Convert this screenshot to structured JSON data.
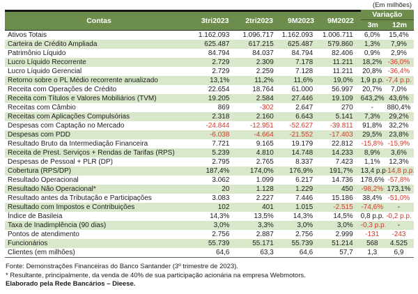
{
  "note_top": "(Em milhões)",
  "colors": {
    "header_green": "#6d8d4d",
    "stripe_green": "#d9e7ca",
    "negative_red": "#d5392a"
  },
  "table": {
    "header": {
      "contas": "Contas",
      "periods": [
        "3tri2023",
        "2tri2023",
        "9M2023",
        "9M2022"
      ],
      "variacao": "Variação",
      "sub": [
        "3m",
        "12m"
      ]
    },
    "rows": [
      {
        "label": "Ativos Totais",
        "values": [
          "1.162.093",
          "1.096.717",
          "1.162.093",
          "1.006.711",
          "6,0%",
          "15,4%"
        ],
        "red": []
      },
      {
        "label": "Carteira de Crédito Ampliada",
        "values": [
          "625.487",
          "617.215",
          "625.487",
          "579.860",
          "1,3%",
          "7,9%"
        ],
        "red": []
      },
      {
        "label": "Patrimônio Líquido",
        "values": [
          "84.794",
          "84.037",
          "84.794",
          "82.406",
          "0,9%",
          "2,9%"
        ],
        "red": []
      },
      {
        "label": "Lucro Líquido Recorrente",
        "values": [
          "2.729",
          "2.309",
          "7.178",
          "11.211",
          "18,2%",
          "-36,0%"
        ],
        "red": [
          5
        ]
      },
      {
        "label": "Lucro Líquido Gerencial",
        "values": [
          "2.729",
          "2.259",
          "7.128",
          "11.211",
          "20,8%",
          "-36,4%"
        ],
        "red": [
          5
        ]
      },
      {
        "label": "Retorno sobre o PL Médio recorrente anualizado",
        "values": [
          "13,1%",
          "11,2%",
          "11,6%",
          "19,0%",
          "1,9 p.p.",
          "-7,4 p.p."
        ],
        "red": [
          5
        ]
      },
      {
        "label": "Receita com Operações de Crédito",
        "values": [
          "22.654",
          "18.764",
          "61.000",
          "56.997",
          "20,7%",
          "7,0%"
        ],
        "red": []
      },
      {
        "label": "Receita com Títulos e Valores Mobiliários (TVM)",
        "values": [
          "19.205",
          "2.584",
          "27.446",
          "19.109",
          "643,2%",
          "43,6%"
        ],
        "red": []
      },
      {
        "label": "Receitas com Câmbio",
        "values": [
          "869",
          "-302",
          "2.647",
          "270",
          "-",
          "880,4%"
        ],
        "red": [
          1
        ]
      },
      {
        "label": "Receitas com Aplicações Compulsórias",
        "values": [
          "2.318",
          "2.160",
          "6.643",
          "5.141",
          "7,3%",
          "29,2%"
        ],
        "red": []
      },
      {
        "label": "Despesas com Captação no Mercado",
        "values": [
          "-24.844",
          "-12.951",
          "-52.627",
          "-39.811",
          "91,8%",
          "32,2%"
        ],
        "red": [
          0,
          1,
          2,
          3
        ]
      },
      {
        "label": "Despesas com PDD",
        "values": [
          "-6.038",
          "-4.664",
          "-21.552",
          "-17.403",
          "29,5%",
          "23,8%"
        ],
        "red": [
          0,
          1,
          2,
          3
        ]
      },
      {
        "label": "Resultado Bruto da Intermediação Financeira",
        "values": [
          "7.721",
          "9.165",
          "19.179",
          "22.812",
          "-15,8%",
          "-15,9%"
        ],
        "red": [
          4,
          5
        ]
      },
      {
        "label": "Receita de Prest. Serviços + Rendas de Tarifas (RPS)",
        "values": [
          "5.239",
          "4.810",
          "14.748",
          "14.233",
          "8,9%",
          "3,6%"
        ],
        "red": []
      },
      {
        "label": "Despesas de Pessoal + PLR (DP)",
        "values": [
          "2.795",
          "2.765",
          "8.337",
          "7.423",
          "1,1%",
          "12,3%"
        ],
        "red": []
      },
      {
        "label": "Cobertura (RPS/DP)",
        "values": [
          "187,4%",
          "174,0%",
          "176,9%",
          "191,7%",
          "13,4 p.p.",
          "-14,8 p.p."
        ],
        "red": [
          5
        ]
      },
      {
        "label": "Resultado Operacional",
        "values": [
          "3.062",
          "1.099",
          "6.217",
          "14.736",
          "178,6%",
          "-57,8%"
        ],
        "red": [
          5
        ]
      },
      {
        "label": "Resultado Não Operacional*",
        "values": [
          "20",
          "1.128",
          "1.229",
          "450",
          "-98,2%",
          "173,1%"
        ],
        "red": [
          4
        ]
      },
      {
        "label": "Resultado antes da Tributação e Participações",
        "values": [
          "3.083",
          "2.227",
          "7.446",
          "15.186",
          "38,4%",
          "-51,0%"
        ],
        "red": [
          5
        ]
      },
      {
        "label": "Resultado com Impostos e Contribuições",
        "values": [
          "102",
          "401",
          "1.015",
          "-2.515",
          "-74,6%",
          "-"
        ],
        "red": [
          3,
          4
        ]
      },
      {
        "label": "Índice de Basileia",
        "values": [
          "14,3%",
          "13,5%",
          "14,3%",
          "14,5%",
          "0,8 p.p.",
          "-0,2 p.p."
        ],
        "red": [
          5
        ]
      },
      {
        "label": "Taxa de Inadimplência (90 dias)",
        "values": [
          "3,0%",
          "3,3%",
          "3,0%",
          "3,0%",
          "-0,3 p.p.",
          "-"
        ],
        "red": [
          4
        ]
      },
      {
        "label": "Pontos de atendimento",
        "values": [
          "2.756",
          "2.887",
          "2.756",
          "2.999",
          "-131",
          "-243"
        ],
        "red": [
          4,
          5
        ]
      },
      {
        "label": "Funcionários",
        "values": [
          "55.739",
          "55.171",
          "55.739",
          "51.214",
          "568",
          "4.525"
        ],
        "red": []
      },
      {
        "label": "Clientes (em milhões)",
        "values": [
          "64,6",
          "63,3",
          "64,6",
          "57,7",
          "1,3",
          "6,9"
        ],
        "red": []
      }
    ]
  },
  "footer": {
    "fonte": "Fonte: Demonstrações Financeiras do Banco Santander (3º trimestre de 2023).",
    "asterisco": "* Resultante, principalmente, da venda de 40% de sua participação acionária na empresa Webmotors.",
    "elaborado": "Elaborado pela Rede Bancários – Dieese."
  }
}
